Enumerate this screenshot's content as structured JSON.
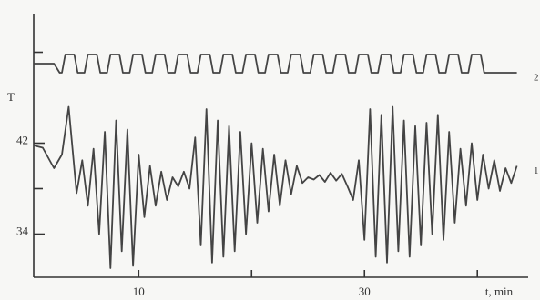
{
  "chart_data": {
    "type": "line",
    "x_label": "t, min",
    "y_label": "T",
    "xlim": [
      0.7,
      44.5
    ],
    "ylim": [
      30.2,
      53.4
    ],
    "xticks": [
      10,
      30
    ],
    "xticks_minor": [
      20,
      40
    ],
    "yticks": [
      34,
      42
    ],
    "yticks_minor": [
      38,
      50
    ],
    "series": [
      {
        "name": "2",
        "color": "#444",
        "x": [
          0.7,
          2.5,
          3.0,
          3.2,
          3.5,
          4.3,
          4.6,
          5.2,
          5.5,
          6.3,
          6.6,
          7.2,
          7.5,
          8.3,
          8.6,
          9.2,
          9.5,
          10.3,
          10.6,
          11.2,
          11.5,
          12.3,
          12.6,
          13.2,
          13.5,
          14.3,
          14.6,
          15.2,
          15.5,
          16.3,
          16.6,
          17.2,
          17.5,
          18.3,
          18.6,
          19.2,
          19.5,
          20.3,
          20.6,
          21.2,
          21.5,
          22.3,
          22.6,
          23.2,
          23.5,
          24.3,
          24.6,
          25.2,
          25.5,
          26.3,
          26.6,
          27.2,
          27.5,
          28.3,
          28.6,
          29.2,
          29.5,
          30.3,
          30.6,
          31.2,
          31.5,
          32.3,
          32.6,
          33.2,
          33.5,
          34.3,
          34.6,
          35.2,
          35.5,
          36.3,
          36.6,
          37.2,
          37.5,
          38.3,
          38.6,
          39.2,
          39.5,
          40.3,
          40.6,
          41.5,
          43.5
        ],
        "values": [
          49.0,
          49.0,
          48.2,
          48.2,
          49.8,
          49.8,
          48.2,
          48.2,
          49.8,
          49.8,
          48.2,
          48.2,
          49.8,
          49.8,
          48.2,
          48.2,
          49.8,
          49.8,
          48.2,
          48.2,
          49.8,
          49.8,
          48.2,
          48.2,
          49.8,
          49.8,
          48.2,
          48.2,
          49.8,
          49.8,
          48.2,
          48.2,
          49.8,
          49.8,
          48.2,
          48.2,
          49.8,
          49.8,
          48.2,
          48.2,
          49.8,
          49.8,
          48.2,
          48.2,
          49.8,
          49.8,
          48.2,
          48.2,
          49.8,
          49.8,
          48.2,
          48.2,
          49.8,
          49.8,
          48.2,
          48.2,
          49.8,
          49.8,
          48.2,
          48.2,
          49.8,
          49.8,
          48.2,
          48.2,
          49.8,
          49.8,
          48.2,
          48.2,
          49.8,
          49.8,
          48.2,
          48.2,
          49.8,
          49.8,
          48.2,
          48.2,
          49.8,
          49.8,
          48.2,
          48.2,
          48.2
        ]
      },
      {
        "name": "1",
        "color": "#444",
        "x": [
          0.7,
          1.5,
          2.5,
          3.2,
          3.8,
          4.5,
          5.0,
          5.5,
          6.0,
          6.5,
          7.0,
          7.5,
          8.0,
          8.5,
          9.0,
          9.5,
          10.0,
          10.5,
          11.0,
          11.5,
          12.0,
          12.5,
          13.0,
          13.5,
          14.0,
          14.5,
          15.0,
          15.5,
          16.0,
          16.5,
          17.0,
          17.5,
          18.0,
          18.5,
          19.0,
          19.5,
          20.0,
          20.5,
          21.0,
          21.5,
          22.0,
          22.5,
          23.0,
          23.5,
          24.0,
          24.5,
          25.0,
          25.5,
          26.0,
          26.5,
          27.0,
          27.5,
          28.0,
          28.5,
          29.0,
          29.5,
          30.0,
          30.5,
          31.0,
          31.5,
          32.0,
          32.5,
          33.0,
          33.5,
          34.0,
          34.5,
          35.0,
          35.5,
          36.0,
          36.5,
          37.0,
          37.5,
          38.0,
          38.5,
          39.0,
          39.5,
          40.0,
          40.5,
          41.0,
          41.5,
          42.0,
          42.5,
          43.0,
          43.5
        ],
        "values": [
          41.8,
          41.6,
          39.8,
          41.0,
          45.2,
          37.6,
          40.5,
          36.5,
          41.5,
          34.0,
          43.0,
          31.0,
          44.0,
          32.5,
          43.2,
          31.2,
          41.0,
          35.5,
          40.0,
          36.5,
          39.5,
          37.0,
          39.0,
          38.2,
          39.5,
          38.0,
          42.5,
          33.0,
          45.0,
          31.5,
          44.0,
          32.0,
          43.5,
          32.5,
          43.0,
          34.0,
          42.0,
          35.0,
          41.5,
          36.0,
          41.0,
          36.5,
          40.5,
          37.5,
          40.0,
          38.5,
          39.0,
          38.8,
          39.2,
          38.6,
          39.4,
          38.7,
          39.3,
          38.2,
          37.0,
          40.5,
          33.5,
          45.0,
          32.0,
          44.5,
          31.5,
          45.2,
          32.5,
          44.0,
          32.0,
          43.5,
          33.0,
          43.8,
          34.0,
          44.5,
          33.5,
          43.0,
          35.0,
          41.5,
          36.5,
          42.0,
          37.0,
          41.0,
          38.0,
          40.5,
          37.8,
          39.8,
          38.5,
          40.0
        ]
      }
    ]
  }
}
